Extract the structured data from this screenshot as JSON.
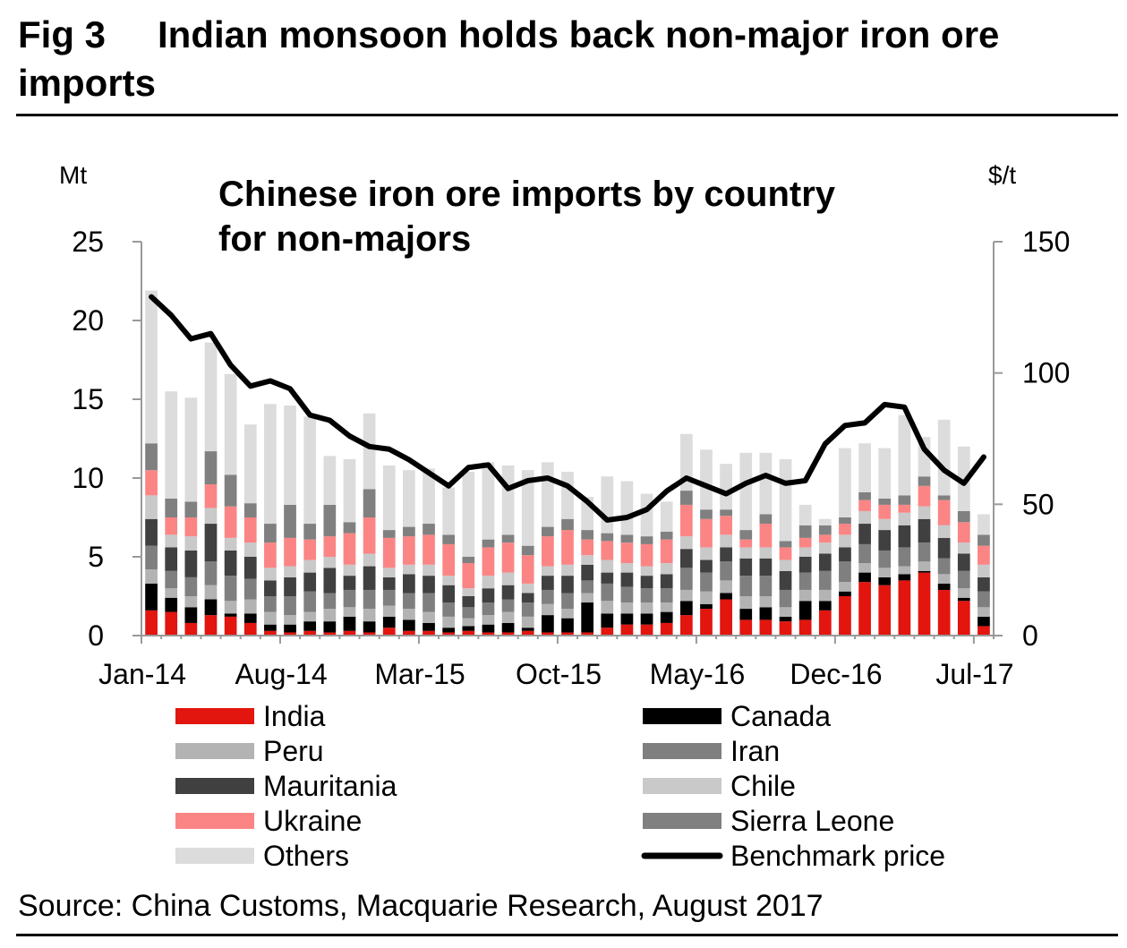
{
  "figure": {
    "label": "Fig 3",
    "title": "Indian monsoon holds back non-major iron ore imports",
    "source": "Source: China Customs, Macquarie Research, August 2017"
  },
  "colors": {
    "India": "#e2150f",
    "Canada": "#000000",
    "Peru": "#b3b3b3",
    "Iran": "#7f7f7f",
    "Mauritania": "#404040",
    "Chile": "#c9c9c9",
    "Ukraine": "#fb8585",
    "Sierra Leone": "#808080",
    "Others": "#dcdcdc",
    "Benchmark price": "#000000"
  },
  "chart_data": {
    "type": "bar",
    "stacked": true,
    "title": "Chinese iron ore imports by country for non-majors",
    "ylabel": "Mt",
    "y2label": "$/t",
    "ylim": [
      0,
      25
    ],
    "y2lim": [
      0,
      150
    ],
    "yticks": [
      "0",
      "5",
      "10",
      "15",
      "20",
      "25"
    ],
    "y2ticks": [
      "0",
      "50",
      "100",
      "150"
    ],
    "x_tick_labels": [
      "Jan-14",
      "Aug-14",
      "Mar-15",
      "Oct-15",
      "May-16",
      "Dec-16",
      "Jul-17"
    ],
    "categories": [
      "Jan-14",
      "Feb-14",
      "Mar-14",
      "Apr-14",
      "May-14",
      "Jun-14",
      "Jul-14",
      "Aug-14",
      "Sep-14",
      "Oct-14",
      "Nov-14",
      "Dec-14",
      "Jan-15",
      "Feb-15",
      "Mar-15",
      "Apr-15",
      "May-15",
      "Jun-15",
      "Jul-15",
      "Aug-15",
      "Sep-15",
      "Oct-15",
      "Nov-15",
      "Dec-15",
      "Jan-16",
      "Feb-16",
      "Mar-16",
      "Apr-16",
      "May-16",
      "Jun-16",
      "Jul-16",
      "Aug-16",
      "Sep-16",
      "Oct-16",
      "Nov-16",
      "Dec-16",
      "Jan-17",
      "Feb-17",
      "Mar-17",
      "Apr-17",
      "May-17",
      "Jun-17",
      "Jul-17"
    ],
    "legend": [
      "India",
      "Canada",
      "Peru",
      "Iran",
      "Mauritania",
      "Chile",
      "Ukraine",
      "Sierra Leone",
      "Others",
      "Benchmark price"
    ],
    "series": [
      {
        "name": "India",
        "values": [
          1.6,
          1.5,
          0.8,
          1.3,
          1.2,
          0.8,
          0.3,
          0.2,
          0.3,
          0.2,
          0.3,
          0.2,
          0.5,
          0.3,
          0.3,
          0.2,
          0.3,
          0.2,
          0.2,
          0.3,
          0.2,
          0.2,
          0.2,
          0.5,
          0.7,
          0.7,
          0.8,
          1.3,
          1.7,
          2.3,
          1.0,
          1.0,
          0.9,
          1.0,
          1.6,
          2.5,
          3.4,
          3.2,
          3.5,
          4.0,
          2.9,
          2.2,
          0.6
        ]
      },
      {
        "name": "Canada",
        "values": [
          1.7,
          0.9,
          1.0,
          1.0,
          0.2,
          0.6,
          0.4,
          0.5,
          0.6,
          0.7,
          0.9,
          0.7,
          0.7,
          0.7,
          0.5,
          0.3,
          0.3,
          0.5,
          0.6,
          0.2,
          1.1,
          0.9,
          1.9,
          0.9,
          0.7,
          0.7,
          0.7,
          0.9,
          0.3,
          0.4,
          0.7,
          0.8,
          0.3,
          1.2,
          0.6,
          0.3,
          0.6,
          0.5,
          0.4,
          0.1,
          0.4,
          0.2,
          0.6
        ]
      },
      {
        "name": "Peru",
        "values": [
          0.9,
          0.6,
          0.7,
          0.9,
          0.8,
          0.9,
          0.8,
          0.6,
          0.6,
          0.8,
          0.6,
          0.8,
          0.7,
          0.7,
          0.7,
          0.7,
          0.5,
          0.6,
          0.7,
          0.7,
          0.7,
          0.6,
          0.6,
          0.8,
          0.7,
          0.7,
          0.6,
          0.7,
          0.8,
          0.8,
          0.8,
          0.7,
          0.6,
          0.7,
          0.7,
          0.6,
          0.6,
          0.6,
          0.5,
          0.6,
          0.6,
          0.6,
          0.6
        ]
      },
      {
        "name": "Iran",
        "values": [
          1.5,
          1.1,
          1.2,
          1.5,
          1.6,
          1.3,
          1.0,
          1.2,
          1.3,
          1.0,
          1.1,
          1.2,
          1.0,
          1.0,
          1.2,
          0.9,
          0.7,
          0.8,
          0.8,
          0.9,
          0.9,
          1.0,
          0.8,
          1.1,
          1.0,
          0.9,
          0.9,
          1.4,
          1.2,
          1.2,
          1.3,
          1.3,
          1.1,
          1.1,
          1.2,
          1.3,
          1.2,
          1.1,
          1.2,
          1.2,
          1.0,
          1.1,
          1.0
        ]
      },
      {
        "name": "Mauritania",
        "values": [
          1.7,
          1.5,
          1.7,
          2.4,
          1.6,
          1.4,
          1.0,
          1.2,
          1.2,
          1.6,
          0.9,
          1.5,
          0.8,
          1.2,
          1.1,
          1.1,
          0.7,
          0.9,
          0.9,
          0.6,
          0.9,
          1.1,
          1.0,
          0.7,
          0.9,
          0.8,
          0.9,
          1.2,
          0.8,
          0.9,
          1.1,
          1.1,
          1.2,
          1.0,
          1.1,
          0.9,
          1.3,
          1.3,
          1.4,
          1.5,
          1.3,
          1.1,
          0.9
        ]
      },
      {
        "name": "Chile",
        "values": [
          1.5,
          0.8,
          0.9,
          1.0,
          0.8,
          0.9,
          0.8,
          0.7,
          0.8,
          0.7,
          0.7,
          0.8,
          0.6,
          0.6,
          0.7,
          0.6,
          0.5,
          0.8,
          0.8,
          0.6,
          0.6,
          0.7,
          0.6,
          0.8,
          0.6,
          0.6,
          0.7,
          0.8,
          0.8,
          0.8,
          0.7,
          0.7,
          0.7,
          0.6,
          0.7,
          0.8,
          0.8,
          0.7,
          0.8,
          0.8,
          0.8,
          0.7,
          0.8
        ]
      },
      {
        "name": "Ukraine",
        "values": [
          1.6,
          1.1,
          1.2,
          1.5,
          2.0,
          1.6,
          1.6,
          1.8,
          1.3,
          1.3,
          2.0,
          2.3,
          1.9,
          1.8,
          1.9,
          2.0,
          1.6,
          1.8,
          1.9,
          1.8,
          1.9,
          2.2,
          1.0,
          1.2,
          1.3,
          1.4,
          1.5,
          2.0,
          1.8,
          1.2,
          0.5,
          1.5,
          0.8,
          0.6,
          0.5,
          0.7,
          0.7,
          0.9,
          0.5,
          1.3,
          1.6,
          1.3,
          1.2
        ]
      },
      {
        "name": "Sierra Leone",
        "values": [
          1.7,
          1.2,
          1.0,
          2.1,
          2.0,
          0.9,
          1.2,
          2.1,
          1.0,
          2.0,
          0.7,
          1.8,
          0.5,
          0.6,
          0.7,
          0.6,
          0.4,
          0.5,
          0.5,
          0.6,
          0.6,
          0.7,
          0.6,
          0.5,
          0.5,
          0.5,
          0.5,
          0.9,
          0.6,
          0.4,
          0.6,
          0.6,
          0.4,
          0.8,
          0.6,
          0.4,
          0.5,
          0.4,
          0.6,
          0.6,
          0.3,
          0.7,
          0.7
        ]
      },
      {
        "name": "Others",
        "values": [
          9.7,
          6.8,
          6.6,
          6.9,
          6.4,
          5.0,
          7.6,
          6.3,
          6.8,
          3.1,
          4.0,
          4.8,
          4.1,
          3.6,
          3.5,
          3.0,
          5.4,
          4.9,
          4.4,
          4.8,
          4.1,
          3.0,
          2.1,
          3.6,
          3.4,
          2.7,
          1.9,
          3.6,
          3.8,
          2.9,
          4.9,
          3.9,
          5.2,
          1.3,
          0.4,
          4.4,
          3.1,
          3.2,
          5.1,
          2.5,
          4.8,
          4.1,
          1.3
        ]
      },
      {
        "name": "Benchmark price",
        "axis": "y2",
        "values": [
          129,
          122,
          113,
          115,
          103,
          95,
          97,
          94,
          84,
          82,
          76,
          72,
          71,
          67,
          62,
          57,
          64,
          65,
          56,
          59,
          60,
          57,
          51,
          44,
          45,
          48,
          55,
          60,
          57,
          54,
          58,
          61,
          58,
          59,
          73,
          80,
          81,
          88,
          87,
          71,
          63,
          58,
          68
        ]
      }
    ]
  }
}
